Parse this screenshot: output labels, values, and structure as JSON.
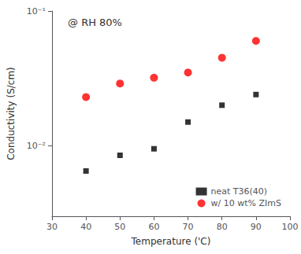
{
  "chart_data": {
    "type": "scatter",
    "xlabel": "Temperature ('C)",
    "ylabel": "Conductivity (S/cm)",
    "annotation": "@ RH 80%",
    "series": [
      {
        "name": "neat T36(40)",
        "color": "#000000",
        "marker": "square",
        "x": [
          40,
          50,
          60,
          70,
          80,
          90
        ],
        "values": [
          0.0065,
          0.0085,
          0.0095,
          0.015,
          0.02,
          0.024
        ]
      },
      {
        "name": "w/ 10 wt% ZImS",
        "color": "#ff0000",
        "marker": "circle",
        "x": [
          40,
          50,
          60,
          70,
          80,
          90
        ],
        "values": [
          0.023,
          0.029,
          0.032,
          0.035,
          0.045,
          0.06
        ]
      }
    ],
    "xlim": [
      30,
      100
    ],
    "ylim": [
      0.003,
      0.1
    ],
    "xticks": [
      30,
      40,
      50,
      60,
      70,
      80,
      90,
      100
    ],
    "yticks": [
      {
        "value": 0.01,
        "label": "10⁻²"
      },
      {
        "value": 0.1,
        "label": "10⁻¹"
      }
    ],
    "log": "y",
    "grid": false,
    "legend": "lower right"
  }
}
